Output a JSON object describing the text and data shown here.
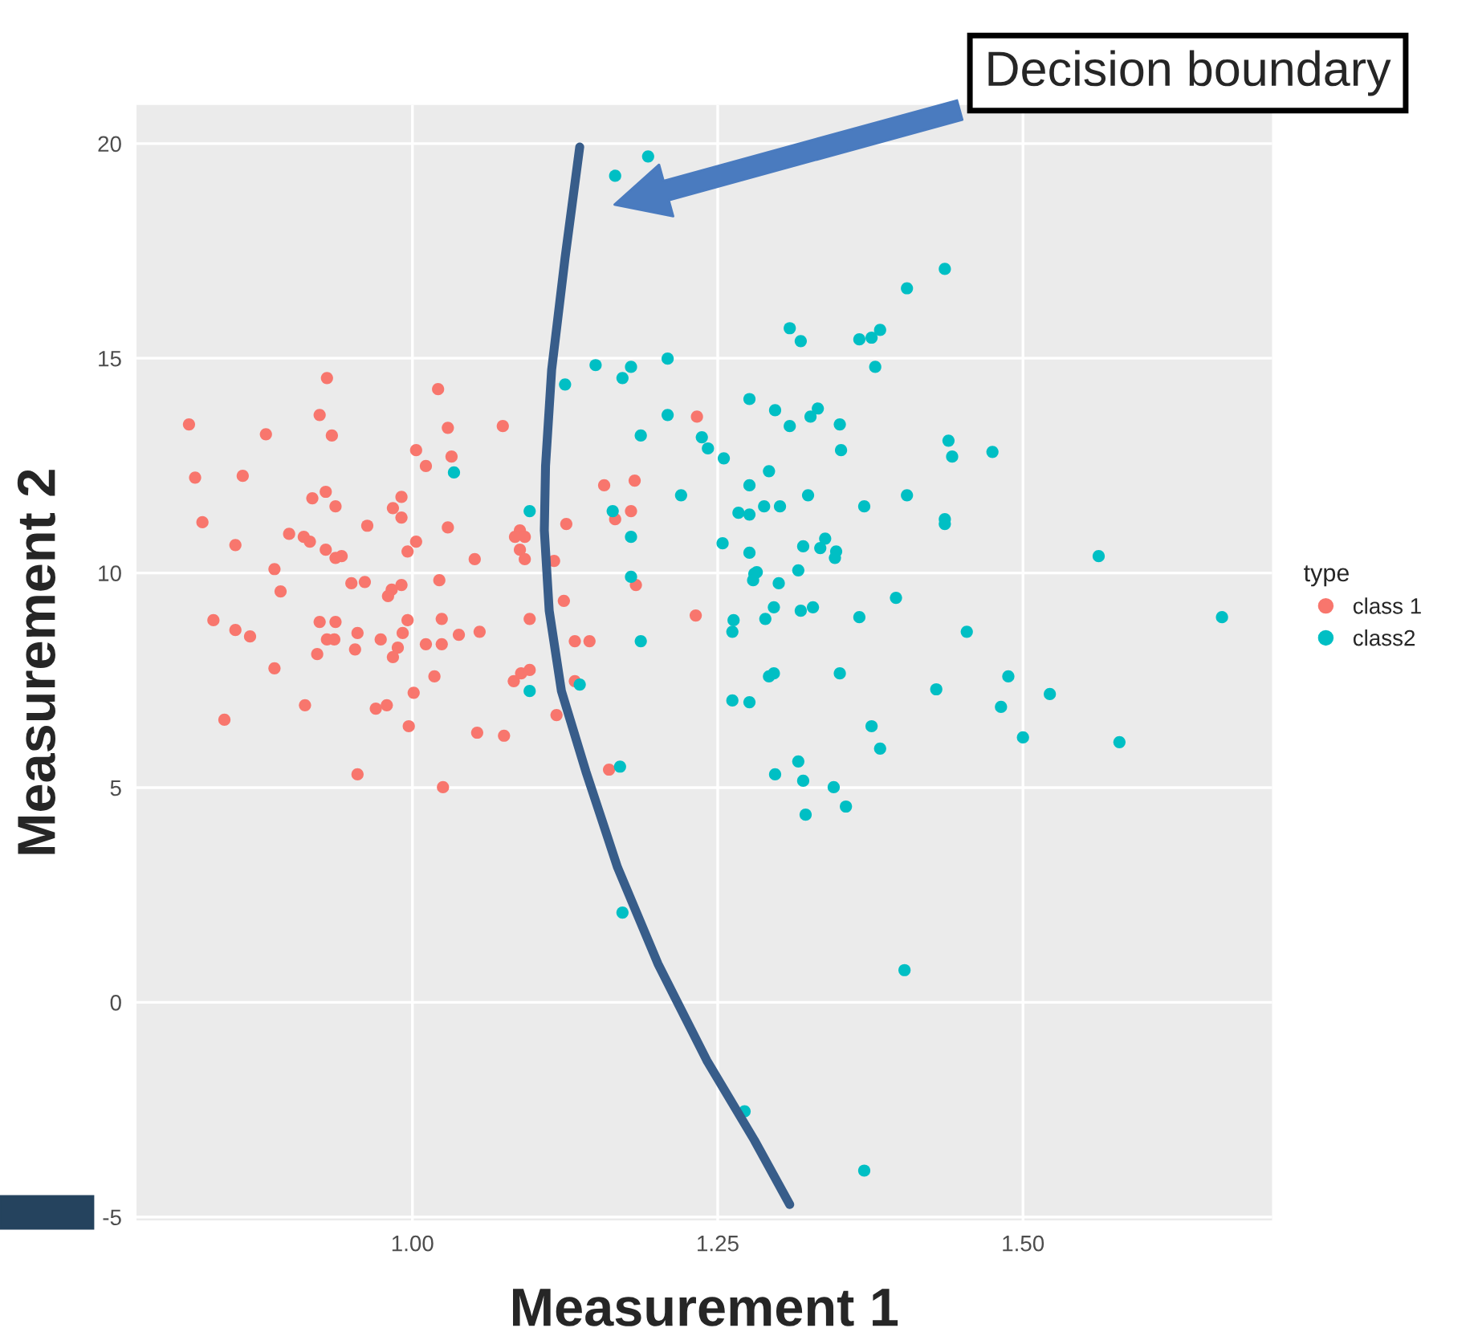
{
  "chart_data": {
    "type": "scatter",
    "xlabel": "Measurement 1",
    "ylabel": "Measurement 2",
    "legend_title": "type",
    "legend": "right",
    "grid": true,
    "xlim": [
      0.774,
      1.704
    ],
    "ylim": [
      -5.08,
      20.9
    ],
    "xticks": [
      {
        "value": 1.0,
        "label": "1.00"
      },
      {
        "value": 1.25,
        "label": "1.25"
      },
      {
        "value": 1.5,
        "label": "1.50"
      }
    ],
    "yticks": [
      -5,
      0,
      5,
      10,
      15,
      20
    ],
    "annotations": [
      "Decision boundary"
    ],
    "series": [
      {
        "name": "class 1",
        "color": "#f8766d",
        "marker": "circle",
        "x": [
          0.93,
          1.021,
          0.817,
          0.924,
          0.88,
          0.934,
          1.029,
          1.074,
          1.003,
          1.032,
          1.011,
          0.822,
          0.861,
          0.929,
          0.918,
          0.937,
          0.991,
          0.984,
          0.991,
          0.828,
          0.963,
          1.029,
          0.855,
          0.899,
          0.911,
          0.916,
          0.929,
          0.937,
          0.942,
          0.996,
          1.003,
          1.051,
          1.088,
          1.084,
          1.092,
          1.088,
          1.092,
          1.126,
          1.116,
          0.887,
          0.892,
          0.95,
          0.961,
          0.991,
          0.983,
          0.98,
          1.022,
          1.124,
          0.837,
          0.855,
          0.867,
          0.924,
          0.937,
          0.955,
          0.93,
          0.936,
          0.974,
          0.992,
          0.996,
          1.024,
          1.038,
          1.055,
          1.096,
          0.988,
          0.953,
          0.922,
          0.984,
          1.011,
          1.024,
          0.887,
          1.018,
          1.083,
          1.089,
          1.096,
          1.001,
          0.912,
          0.97,
          0.979,
          0.846,
          0.997,
          1.053,
          1.075,
          1.118,
          0.955,
          1.025,
          1.233,
          1.157,
          1.182,
          1.179,
          1.166,
          1.183,
          1.232,
          1.133,
          1.145,
          1.133,
          1.161
        ],
        "values": [
          14.54,
          14.28,
          13.46,
          13.68,
          13.23,
          13.2,
          13.38,
          13.42,
          12.86,
          12.71,
          12.49,
          12.22,
          12.26,
          11.89,
          11.74,
          11.55,
          11.77,
          11.51,
          11.29,
          11.18,
          11.1,
          11.06,
          10.65,
          10.91,
          10.84,
          10.73,
          10.54,
          10.35,
          10.39,
          10.5,
          10.73,
          10.32,
          10.99,
          10.84,
          10.84,
          10.54,
          10.32,
          11.14,
          10.28,
          10.09,
          9.57,
          9.76,
          9.79,
          9.72,
          9.61,
          9.46,
          9.83,
          9.35,
          8.9,
          8.67,
          8.52,
          8.86,
          8.86,
          8.6,
          8.45,
          8.45,
          8.45,
          8.6,
          8.9,
          8.93,
          8.56,
          8.63,
          8.93,
          8.26,
          8.22,
          8.11,
          8.04,
          8.34,
          8.34,
          7.78,
          7.59,
          7.48,
          7.66,
          7.74,
          7.21,
          6.92,
          6.84,
          6.92,
          6.58,
          6.43,
          6.28,
          6.21,
          6.69,
          5.31,
          5.01,
          13.64,
          12.04,
          12.15,
          11.44,
          11.25,
          9.72,
          9.01,
          8.41,
          8.41,
          7.48,
          5.42
        ]
      },
      {
        "name": "class2",
        "color": "#00bfc4",
        "marker": "circle",
        "x": [
          1.034,
          1.096,
          1.096,
          1.125,
          1.193,
          1.166,
          1.309,
          1.318,
          1.366,
          1.376,
          1.383,
          1.379,
          1.209,
          1.15,
          1.179,
          1.172,
          1.276,
          1.297,
          1.332,
          1.326,
          1.309,
          1.35,
          1.351,
          1.209,
          1.187,
          1.237,
          1.242,
          1.255,
          1.292,
          1.276,
          1.324,
          1.37,
          1.22,
          1.164,
          1.267,
          1.276,
          1.288,
          1.301,
          1.179,
          1.254,
          1.276,
          1.32,
          1.338,
          1.334,
          1.347,
          1.346,
          1.282,
          1.316,
          1.179,
          1.28,
          1.279,
          1.3,
          1.296,
          1.289,
          1.318,
          1.328,
          1.366,
          1.263,
          1.262,
          1.187,
          1.292,
          1.296,
          1.35,
          1.137,
          1.262,
          1.276,
          1.376,
          1.383,
          1.316,
          1.297,
          1.32,
          1.345,
          1.355,
          1.322,
          1.17,
          1.172,
          1.436,
          1.405,
          1.439,
          1.442,
          1.475,
          1.405,
          1.436,
          1.436,
          1.562,
          1.396,
          1.663,
          1.454,
          1.488,
          1.429,
          1.522,
          1.482,
          1.5,
          1.579,
          1.403,
          1.272,
          1.37
        ],
        "values": [
          12.34,
          11.44,
          7.25,
          14.39,
          19.7,
          19.25,
          15.7,
          15.4,
          15.44,
          15.48,
          15.66,
          14.8,
          14.99,
          14.84,
          14.8,
          14.54,
          14.05,
          13.79,
          13.83,
          13.64,
          13.42,
          13.46,
          12.86,
          13.68,
          13.2,
          13.16,
          12.9,
          12.67,
          12.37,
          12.04,
          11.81,
          11.55,
          11.81,
          11.44,
          11.4,
          11.36,
          11.55,
          11.55,
          10.84,
          10.69,
          10.47,
          10.62,
          10.8,
          10.58,
          10.5,
          10.35,
          10.02,
          10.06,
          9.91,
          9.98,
          9.83,
          9.76,
          9.2,
          8.93,
          9.12,
          9.2,
          8.97,
          8.9,
          8.63,
          8.41,
          7.59,
          7.66,
          7.66,
          7.4,
          7.03,
          6.99,
          6.43,
          5.91,
          5.61,
          5.31,
          5.16,
          5.01,
          4.56,
          4.37,
          5.49,
          2.09,
          17.08,
          16.63,
          13.08,
          12.71,
          12.82,
          11.81,
          11.25,
          11.14,
          10.39,
          9.42,
          8.97,
          8.63,
          7.59,
          7.29,
          7.18,
          6.88,
          6.17,
          6.06,
          0.75,
          -2.54,
          -3.92
        ]
      },
      {
        "type": "line",
        "color": "#385d8a",
        "marker": "none",
        "x": [
          1.137,
          1.125,
          1.114,
          1.109,
          1.108,
          1.112,
          1.122,
          1.142,
          1.168,
          1.201,
          1.241,
          1.28,
          1.309
        ],
        "values": [
          19.92,
          17.34,
          14.73,
          12.49,
          10.99,
          9.12,
          7.25,
          5.38,
          3.14,
          0.9,
          -1.35,
          -3.21,
          -4.71
        ]
      }
    ]
  }
}
